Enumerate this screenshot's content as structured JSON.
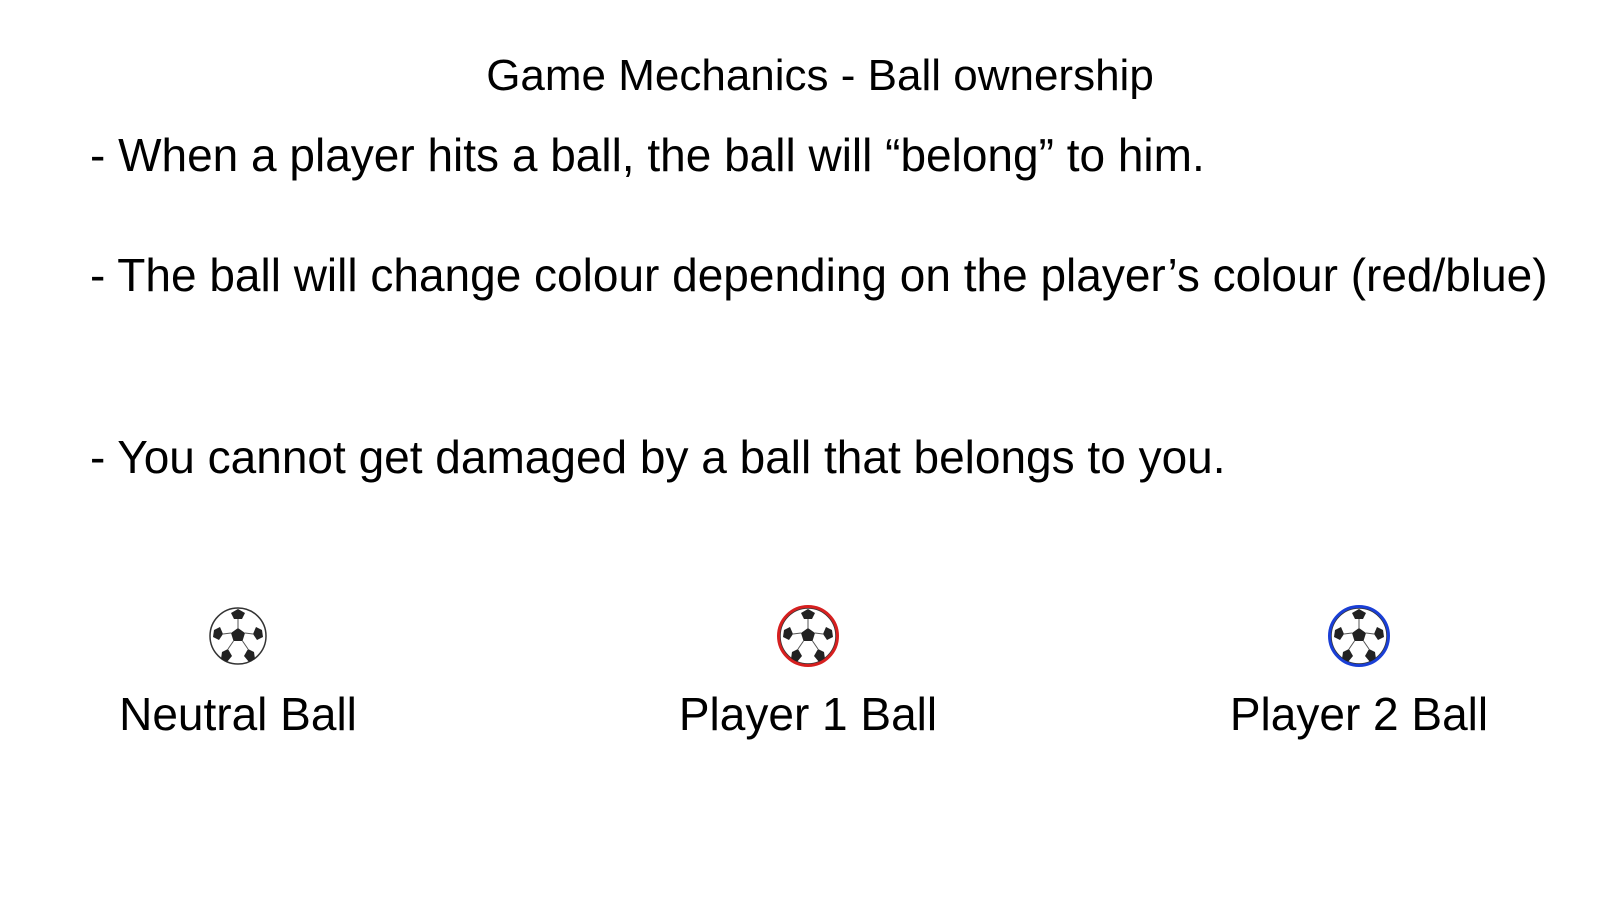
{
  "title": "Game Mechanics - Ball ownership",
  "bullets": [
    "- When a player hits a ball, the ball will “belong” to him.",
    "- The ball will change colour depending on the player’s colour (red/blue)",
    "- You cannot get damaged by a ball that belongs to you."
  ],
  "balls": [
    {
      "label": "Neutral Ball",
      "icon": "soccer-ball-icon",
      "ring_color": ""
    },
    {
      "label": "Player 1 Ball",
      "icon": "soccer-ball-icon",
      "ring_color": "#d62020"
    },
    {
      "label": "Player 2 Ball",
      "icon": "soccer-ball-icon",
      "ring_color": "#1a3fd6"
    }
  ]
}
